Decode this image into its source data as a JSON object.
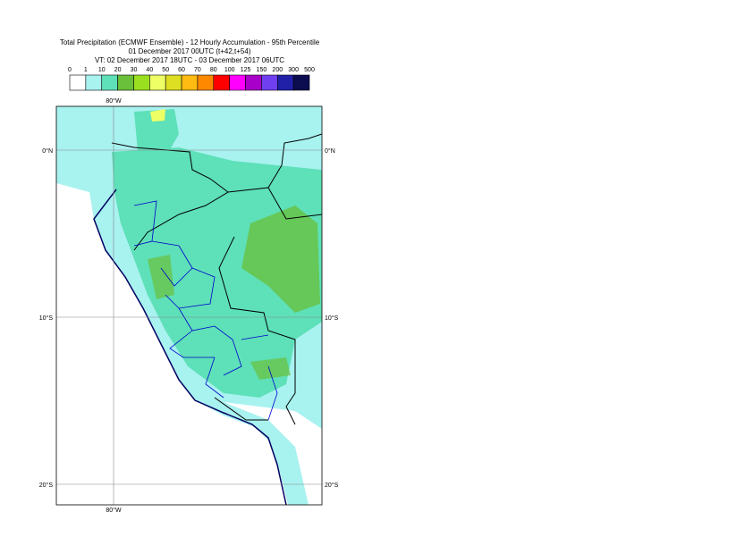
{
  "header": {
    "title": "Total Precipitation (ECMWF Ensemble) - 12 Hourly Accumulation - 95th Percentile",
    "base_time": "01 December 2017 00UTC (t+42,t+54)",
    "valid_time": "VT: 02 December 2017 18UTC - 03 December 2017 06UTC"
  },
  "legend": {
    "labels": [
      "0",
      "1",
      "10",
      "20",
      "30",
      "40",
      "50",
      "60",
      "70",
      "80",
      "100",
      "125",
      "150",
      "200",
      "300",
      "500"
    ],
    "colors": [
      "#ffffff",
      "#a8f2f0",
      "#5ee0b8",
      "#6ac03a",
      "#9ae020",
      "#eeff66",
      "#dede22",
      "#ffbb11",
      "#ff8800",
      "#ff0000",
      "#ff00ff",
      "#a800c8",
      "#7040f0",
      "#2020a8",
      "#0c0c50"
    ]
  },
  "map": {
    "lon_labels": [
      "80°W"
    ],
    "lat_labels": [
      "0°N",
      "10°S",
      "20°S"
    ]
  }
}
